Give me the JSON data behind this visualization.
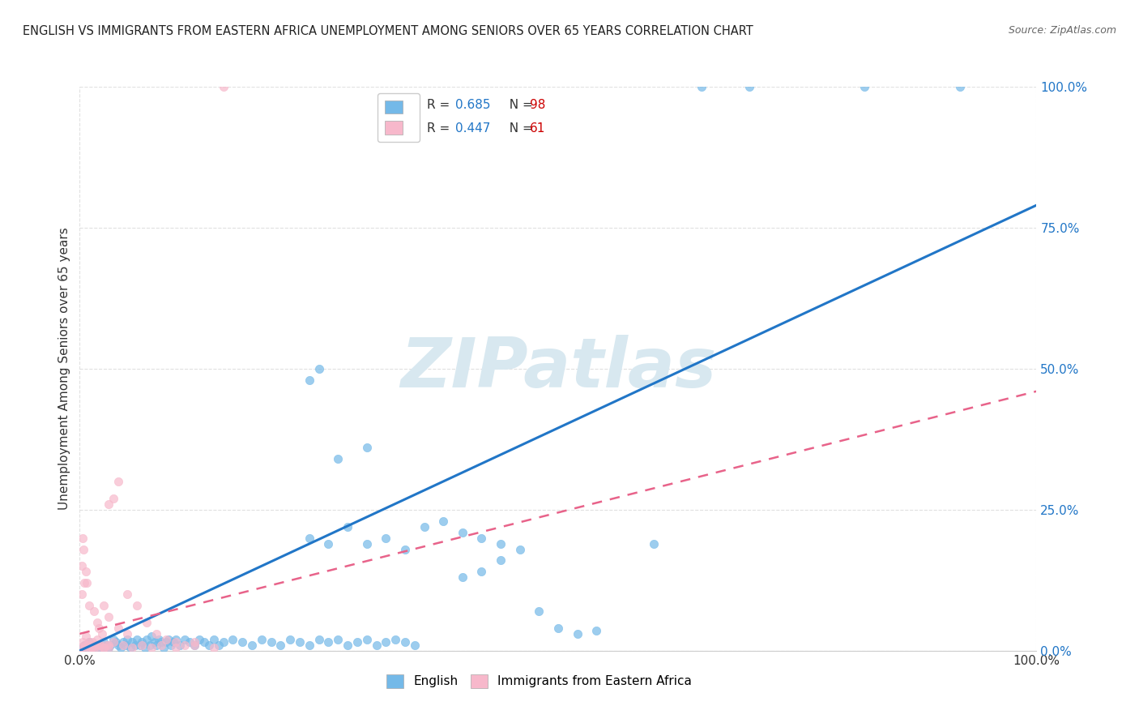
{
  "title": "ENGLISH VS IMMIGRANTS FROM EASTERN AFRICA UNEMPLOYMENT AMONG SENIORS OVER 65 YEARS CORRELATION CHART",
  "source": "Source: ZipAtlas.com",
  "ylabel": "Unemployment Among Seniors over 65 years",
  "yticks_labels": [
    "0.0%",
    "25.0%",
    "50.0%",
    "75.0%",
    "100.0%"
  ],
  "ytick_vals": [
    0,
    25,
    50,
    75,
    100
  ],
  "legend_english_R": "R = 0.685",
  "legend_english_N": "N = 98",
  "legend_immigrants_R": "R = 0.447",
  "legend_immigrants_N": "N = 61",
  "english_scatter_color": "#74b9e8",
  "immigrants_scatter_color": "#f7b8cb",
  "trendline_english_color": "#2176c7",
  "trendline_immigrants_color": "#e8638a",
  "trendline_immigrants_dashed_color": "#d4748e",
  "watermark": "ZIPatlas",
  "watermark_color": "#d8e8f0",
  "R_color": "#2176c7",
  "N_color": "#cc0000",
  "legend_text_color": "#333333",
  "source_color": "#666666",
  "title_color": "#222222",
  "grid_color": "#e0e0e0",
  "ytick_color": "#2176c7",
  "xtick_color": "#333333",
  "background_color": "#ffffff",
  "english_trendline_slope": 0.82,
  "english_trendline_intercept": -3.0,
  "immigrants_trendline_slope": 0.43,
  "immigrants_trendline_intercept": 3.0,
  "xlim": [
    0,
    100
  ],
  "ylim": [
    0,
    100
  ],
  "english_scatter": [
    [
      0.3,
      0.5
    ],
    [
      0.5,
      1.0
    ],
    [
      0.8,
      0.5
    ],
    [
      1.0,
      1.5
    ],
    [
      1.2,
      0.5
    ],
    [
      1.5,
      1.0
    ],
    [
      1.8,
      0.5
    ],
    [
      2.0,
      1.0
    ],
    [
      2.3,
      0.5
    ],
    [
      2.5,
      1.5
    ],
    [
      2.8,
      1.0
    ],
    [
      3.0,
      0.5
    ],
    [
      3.2,
      1.0
    ],
    [
      3.5,
      2.0
    ],
    [
      3.8,
      1.5
    ],
    [
      4.0,
      1.0
    ],
    [
      4.3,
      0.5
    ],
    [
      4.5,
      1.5
    ],
    [
      4.8,
      1.0
    ],
    [
      5.0,
      2.0
    ],
    [
      5.3,
      0.5
    ],
    [
      5.5,
      1.5
    ],
    [
      5.8,
      1.0
    ],
    [
      6.0,
      2.0
    ],
    [
      6.3,
      1.0
    ],
    [
      6.5,
      1.5
    ],
    [
      6.8,
      0.5
    ],
    [
      7.0,
      2.0
    ],
    [
      7.3,
      1.0
    ],
    [
      7.5,
      2.5
    ],
    [
      7.8,
      1.5
    ],
    [
      8.0,
      1.0
    ],
    [
      8.3,
      2.0
    ],
    [
      8.5,
      1.5
    ],
    [
      8.8,
      0.5
    ],
    [
      9.0,
      1.5
    ],
    [
      9.3,
      2.0
    ],
    [
      9.5,
      1.0
    ],
    [
      9.8,
      1.5
    ],
    [
      10.0,
      2.0
    ],
    [
      10.5,
      1.0
    ],
    [
      11.0,
      2.0
    ],
    [
      11.5,
      1.5
    ],
    [
      12.0,
      1.0
    ],
    [
      12.5,
      2.0
    ],
    [
      13.0,
      1.5
    ],
    [
      13.5,
      1.0
    ],
    [
      14.0,
      2.0
    ],
    [
      14.5,
      1.0
    ],
    [
      15.0,
      1.5
    ],
    [
      16.0,
      2.0
    ],
    [
      17.0,
      1.5
    ],
    [
      18.0,
      1.0
    ],
    [
      19.0,
      2.0
    ],
    [
      20.0,
      1.5
    ],
    [
      21.0,
      1.0
    ],
    [
      22.0,
      2.0
    ],
    [
      23.0,
      1.5
    ],
    [
      24.0,
      1.0
    ],
    [
      25.0,
      2.0
    ],
    [
      26.0,
      1.5
    ],
    [
      27.0,
      2.0
    ],
    [
      28.0,
      1.0
    ],
    [
      29.0,
      1.5
    ],
    [
      30.0,
      2.0
    ],
    [
      31.0,
      1.0
    ],
    [
      32.0,
      1.5
    ],
    [
      33.0,
      2.0
    ],
    [
      34.0,
      1.5
    ],
    [
      35.0,
      1.0
    ],
    [
      24.0,
      20.0
    ],
    [
      26.0,
      19.0
    ],
    [
      28.0,
      22.0
    ],
    [
      30.0,
      19.0
    ],
    [
      32.0,
      20.0
    ],
    [
      34.0,
      18.0
    ],
    [
      36.0,
      22.0
    ],
    [
      30.0,
      36.0
    ],
    [
      27.0,
      34.0
    ],
    [
      24.0,
      48.0
    ],
    [
      25.0,
      50.0
    ],
    [
      40.0,
      21.0
    ],
    [
      42.0,
      20.0
    ],
    [
      44.0,
      19.0
    ],
    [
      46.0,
      18.0
    ],
    [
      38.0,
      23.0
    ],
    [
      40.0,
      13.0
    ],
    [
      42.0,
      14.0
    ],
    [
      44.0,
      16.0
    ],
    [
      48.0,
      7.0
    ],
    [
      50.0,
      4.0
    ],
    [
      52.0,
      3.0
    ],
    [
      54.0,
      3.5
    ],
    [
      60.0,
      19.0
    ],
    [
      65.0,
      100.0
    ],
    [
      70.0,
      100.0
    ],
    [
      82.0,
      100.0
    ],
    [
      92.0,
      100.0
    ]
  ],
  "immigrants_scatter": [
    [
      0.2,
      0.5
    ],
    [
      0.5,
      0.5
    ],
    [
      0.8,
      1.0
    ],
    [
      1.0,
      1.5
    ],
    [
      1.2,
      0.5
    ],
    [
      1.5,
      1.0
    ],
    [
      1.8,
      2.0
    ],
    [
      2.0,
      0.5
    ],
    [
      2.2,
      1.0
    ],
    [
      2.5,
      0.5
    ],
    [
      2.8,
      1.0
    ],
    [
      3.0,
      0.5
    ],
    [
      0.3,
      1.5
    ],
    [
      0.6,
      2.5
    ],
    [
      0.9,
      1.0
    ],
    [
      1.3,
      1.5
    ],
    [
      0.2,
      10.0
    ],
    [
      0.4,
      18.0
    ],
    [
      0.6,
      14.0
    ],
    [
      0.7,
      12.0
    ],
    [
      1.0,
      8.0
    ],
    [
      0.2,
      15.0
    ],
    [
      0.3,
      20.0
    ],
    [
      0.5,
      12.0
    ],
    [
      1.5,
      7.0
    ],
    [
      1.8,
      5.0
    ],
    [
      2.0,
      4.0
    ],
    [
      2.3,
      3.0
    ],
    [
      3.5,
      27.0
    ],
    [
      4.0,
      30.0
    ],
    [
      3.0,
      26.0
    ],
    [
      5.0,
      10.0
    ],
    [
      6.0,
      8.0
    ],
    [
      7.0,
      5.0
    ],
    [
      8.0,
      3.0
    ],
    [
      9.0,
      2.0
    ],
    [
      10.0,
      1.5
    ],
    [
      11.0,
      1.0
    ],
    [
      12.0,
      1.5
    ],
    [
      2.5,
      8.0
    ],
    [
      3.0,
      6.0
    ],
    [
      4.0,
      4.0
    ],
    [
      5.0,
      3.0
    ],
    [
      0.5,
      1.0
    ],
    [
      1.0,
      0.5
    ],
    [
      1.5,
      0.5
    ],
    [
      2.0,
      1.0
    ],
    [
      2.5,
      0.5
    ],
    [
      3.0,
      1.0
    ],
    [
      3.5,
      1.5
    ],
    [
      4.5,
      1.0
    ],
    [
      5.5,
      0.5
    ],
    [
      6.5,
      1.0
    ],
    [
      7.5,
      0.5
    ],
    [
      8.5,
      1.0
    ],
    [
      10.0,
      0.5
    ],
    [
      12.0,
      1.0
    ],
    [
      14.0,
      0.5
    ],
    [
      15.0,
      100.0
    ],
    [
      0.8,
      1.0
    ],
    [
      1.2,
      0.5
    ]
  ]
}
